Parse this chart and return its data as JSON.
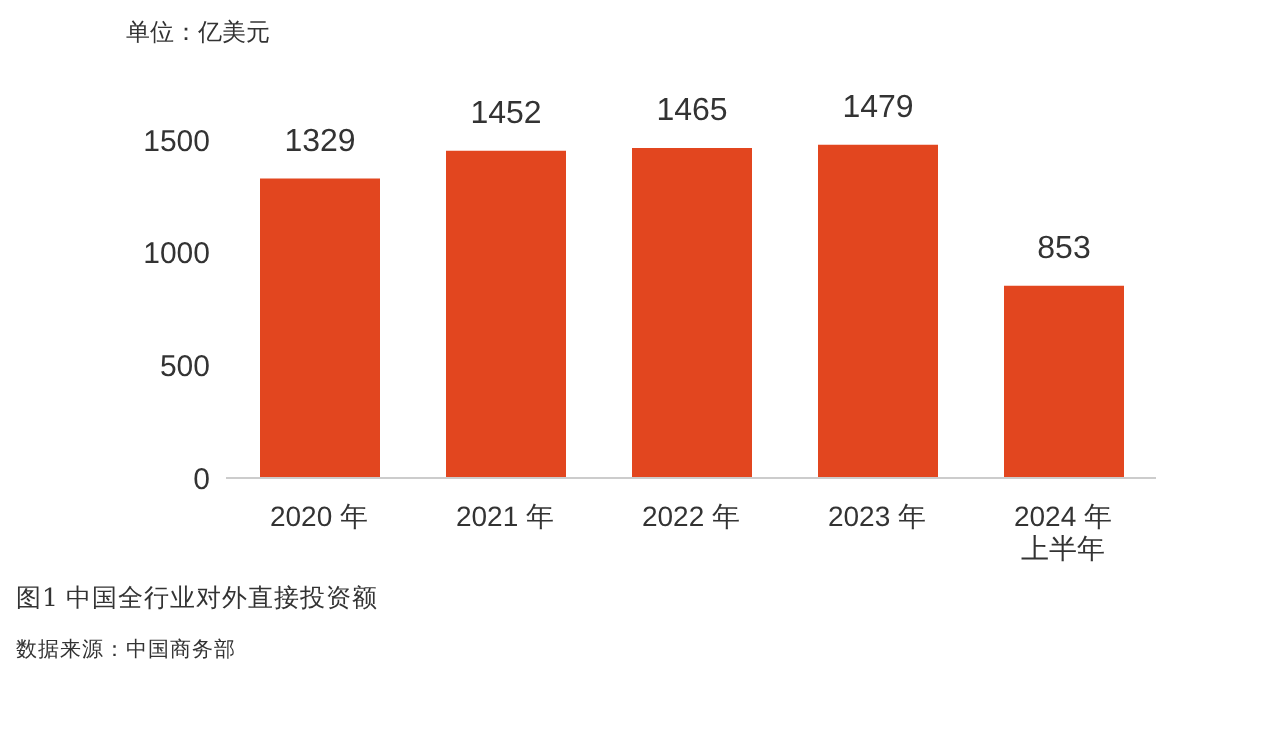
{
  "chart_data": {
    "type": "bar",
    "title": "图1  中国全行业对外直接投资额",
    "ylabel": "单位：亿美元",
    "categories": [
      "2020 年",
      "2021 年",
      "2022 年",
      "2023 年",
      "2024 年上半年"
    ],
    "values": [
      1329,
      1452,
      1465,
      1479,
      853
    ],
    "color": "#e2461f",
    "ylim": [
      0,
      1500
    ],
    "yticks": [
      0,
      500,
      1000,
      1500
    ],
    "grid": false,
    "data_labels": true,
    "annotations": [
      "数据来源：中国商务部"
    ]
  }
}
